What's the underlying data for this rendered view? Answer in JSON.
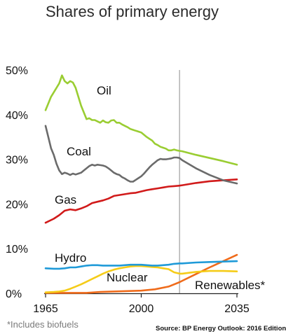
{
  "page": {
    "title": "Shares of primary energy",
    "footnote": "*Includes biofuels",
    "source": "Source: BP Energy Outlook: 2016 Edition"
  },
  "chart_data": {
    "type": "line",
    "title": "Shares of primary energy",
    "xlabel": "",
    "ylabel": "",
    "xlim": [
      1965,
      2035
    ],
    "ylim": [
      0,
      50
    ],
    "xticks": [
      1965,
      2000,
      2035
    ],
    "xtick_labels": [
      "1965",
      "2000",
      "2035"
    ],
    "yticks": [
      0,
      10,
      20,
      30,
      40,
      50
    ],
    "ytick_labels": [
      "0%",
      "10%",
      "20%",
      "30%",
      "40%",
      "50%"
    ],
    "grid": false,
    "reference_line_year": 2014,
    "series": [
      {
        "name": "Oil",
        "label": "Oil",
        "color": "#9acd32",
        "x": [
          1965,
          1966,
          1967,
          1968,
          1969,
          1970,
          1971,
          1972,
          1973,
          1974,
          1975,
          1976,
          1977,
          1978,
          1979,
          1980,
          1981,
          1982,
          1983,
          1984,
          1985,
          1986,
          1987,
          1988,
          1989,
          1990,
          1991,
          1992,
          1993,
          1994,
          1995,
          1996,
          1997,
          1998,
          1999,
          2000,
          2001,
          2002,
          2003,
          2004,
          2005,
          2006,
          2007,
          2008,
          2009,
          2010,
          2011,
          2012,
          2013,
          2014,
          2015,
          2020,
          2025,
          2030,
          2035
        ],
        "y": [
          41,
          42.5,
          44,
          45,
          46,
          47,
          48.8,
          47.5,
          47,
          47.5,
          47.2,
          46,
          44,
          42,
          40.5,
          39,
          39.2,
          38.8,
          38.8,
          38.5,
          38.2,
          38.7,
          38.3,
          38.2,
          38.7,
          38.8,
          38.2,
          38.2,
          37.8,
          37.5,
          37.2,
          36.8,
          36.6,
          36.4,
          36.2,
          36,
          35.5,
          35,
          34.6,
          34.2,
          33.5,
          33.2,
          32.8,
          32.6,
          32.4,
          32,
          32,
          32.2,
          32,
          31.9,
          31.8,
          31,
          30.3,
          29.6,
          28.8
        ]
      },
      {
        "name": "Coal",
        "label": "Coal",
        "color": "#6b6b6b",
        "x": [
          1965,
          1966,
          1967,
          1968,
          1969,
          1970,
          1971,
          1972,
          1973,
          1974,
          1975,
          1976,
          1977,
          1978,
          1979,
          1980,
          1981,
          1982,
          1983,
          1984,
          1985,
          1986,
          1987,
          1988,
          1989,
          1990,
          1991,
          1992,
          1993,
          1994,
          1995,
          1996,
          1997,
          1998,
          1999,
          2000,
          2001,
          2002,
          2003,
          2004,
          2005,
          2006,
          2007,
          2008,
          2009,
          2010,
          2011,
          2012,
          2013,
          2014,
          2015,
          2020,
          2025,
          2030,
          2035
        ],
        "y": [
          37.5,
          35,
          32.5,
          31,
          29,
          27.5,
          26.7,
          27,
          26.8,
          26.5,
          26.8,
          26.6,
          26.8,
          27,
          27.5,
          28,
          28.5,
          28.8,
          28.6,
          28.8,
          28.7,
          28.6,
          28.4,
          28,
          27.5,
          27,
          26.7,
          26.5,
          26,
          25.7,
          25.3,
          25,
          25,
          25.4,
          25.8,
          26.2,
          26.8,
          27.5,
          28.2,
          28.8,
          29.3,
          29.8,
          30.1,
          30,
          30,
          30.1,
          30.2,
          30.4,
          30.4,
          30.3,
          29.8,
          28,
          26.5,
          25.3,
          24.6
        ]
      },
      {
        "name": "Gas",
        "label": "Gas",
        "color": "#d11a1a",
        "x": [
          1965,
          1968,
          1970,
          1972,
          1974,
          1976,
          1978,
          1980,
          1982,
          1984,
          1986,
          1988,
          1990,
          1992,
          1994,
          1996,
          1998,
          2000,
          2002,
          2004,
          2006,
          2008,
          2010,
          2012,
          2014,
          2015,
          2020,
          2025,
          2030,
          2035
        ],
        "y": [
          15.8,
          16.7,
          17.5,
          18.5,
          18.8,
          18.6,
          19,
          19.5,
          20.2,
          20.5,
          20.8,
          21.2,
          21.8,
          22,
          22.2,
          22.4,
          22.5,
          22.8,
          23.1,
          23.3,
          23.5,
          23.7,
          23.9,
          24,
          24.1,
          24.2,
          24.7,
          25.1,
          25.3,
          25.5
        ]
      },
      {
        "name": "Hydro",
        "label": "Hydro",
        "color": "#1f9ad8",
        "x": [
          1965,
          1968,
          1970,
          1972,
          1974,
          1976,
          1978,
          1980,
          1982,
          1984,
          1986,
          1988,
          1990,
          1992,
          1994,
          1996,
          1998,
          2000,
          2002,
          2004,
          2006,
          2008,
          2010,
          2012,
          2014,
          2015,
          2020,
          2025,
          2030,
          2035
        ],
        "y": [
          5.6,
          5.5,
          5.5,
          5.6,
          5.8,
          5.8,
          6,
          6.2,
          6.3,
          6.3,
          6.2,
          6.2,
          6.2,
          6.2,
          6.3,
          6.4,
          6.4,
          6.4,
          6.3,
          6.2,
          6.2,
          6.3,
          6.4,
          6.6,
          6.7,
          6.7,
          6.9,
          7,
          7.1,
          7.2
        ]
      },
      {
        "name": "Nuclear",
        "label": "Nuclear",
        "color": "#f5cc19",
        "x": [
          1965,
          1968,
          1970,
          1972,
          1974,
          1976,
          1978,
          1980,
          1982,
          1984,
          1986,
          1988,
          1990,
          1992,
          1994,
          1996,
          1998,
          2000,
          2002,
          2004,
          2006,
          2008,
          2010,
          2012,
          2014,
          2015,
          2020,
          2025,
          2030,
          2035
        ],
        "y": [
          0.2,
          0.3,
          0.4,
          0.6,
          1,
          1.5,
          2,
          2.6,
          3.2,
          3.8,
          4.4,
          4.9,
          5.3,
          5.6,
          5.8,
          6,
          6.1,
          6.1,
          6,
          5.9,
          5.8,
          5.6,
          5.4,
          4.7,
          4.4,
          4.4,
          4.8,
          5,
          5,
          4.9
        ]
      },
      {
        "name": "Renewables*",
        "label": "Renewables*",
        "color": "#ef6b1b",
        "x": [
          1965,
          1970,
          1975,
          1980,
          1985,
          1990,
          1995,
          2000,
          2005,
          2010,
          2014,
          2015,
          2020,
          2025,
          2030,
          2035
        ],
        "y": [
          0.1,
          0.1,
          0.1,
          0.1,
          0.3,
          0.4,
          0.5,
          0.6,
          0.9,
          1.5,
          2.5,
          2.8,
          4.3,
          5.8,
          7.2,
          8.6
        ]
      }
    ]
  }
}
